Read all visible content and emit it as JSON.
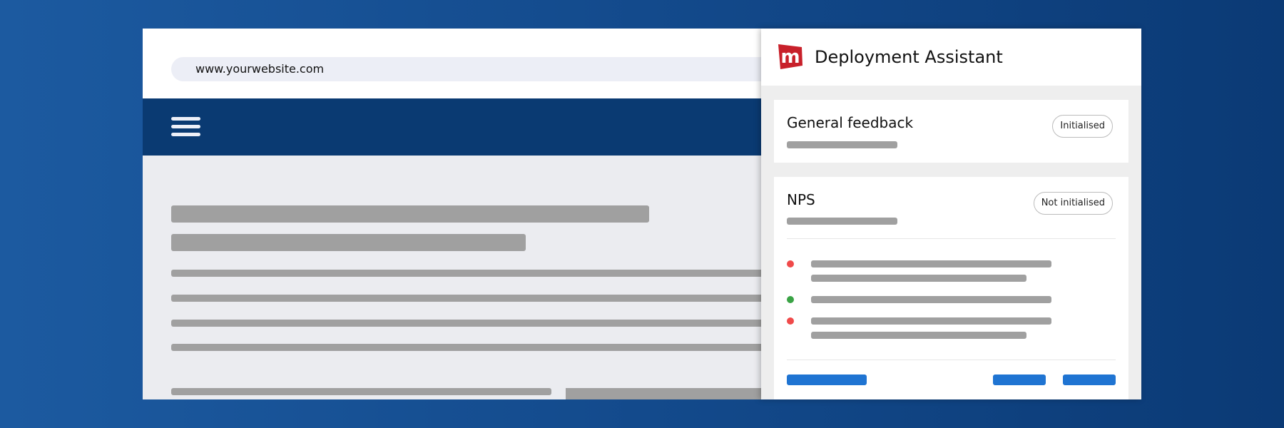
{
  "browser": {
    "url": "www.yourwebsite.com",
    "menu_icon": "hamburger-icon"
  },
  "panel": {
    "title": "Deployment Assistant",
    "logo_letter": "m",
    "brand_color": "#c8202a",
    "cards": [
      {
        "title": "General feedback",
        "status": "Initialised"
      },
      {
        "title": "NPS",
        "status": "Not initialised",
        "checks": [
          {
            "status": "error",
            "color": "#f04a4a"
          },
          {
            "status": "ok",
            "color": "#3aa345"
          },
          {
            "status": "error",
            "color": "#f04a4a"
          }
        ]
      }
    ],
    "button_color": "#1f74d2"
  }
}
